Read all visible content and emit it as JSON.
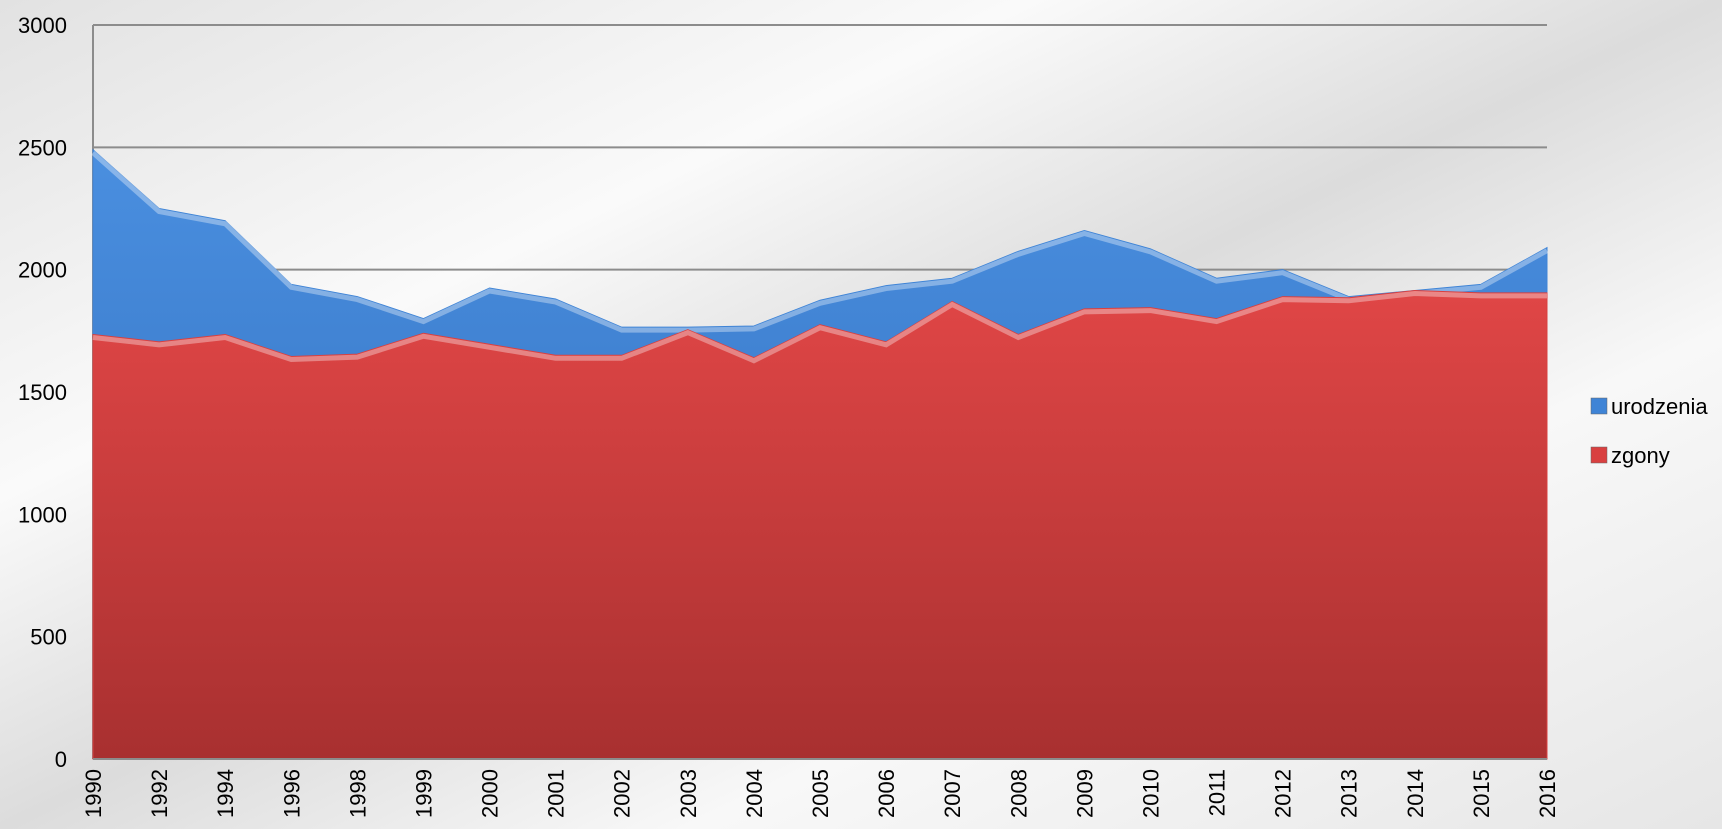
{
  "chart_data": {
    "type": "area",
    "categories": [
      "1990",
      "1992",
      "1994",
      "1996",
      "1998",
      "1999",
      "2000",
      "2001",
      "2002",
      "2003",
      "2004",
      "2005",
      "2006",
      "2007",
      "2008",
      "2009",
      "2010",
      "2011",
      "2012",
      "2013",
      "2014",
      "2015",
      "2016"
    ],
    "series": [
      {
        "name": "urodzenia",
        "color": "#3f84d6",
        "values": [
          2490,
          2250,
          2200,
          1940,
          1890,
          1800,
          1925,
          1880,
          1765,
          1765,
          1770,
          1875,
          1935,
          1965,
          2075,
          2160,
          2085,
          1965,
          2000,
          1890,
          1915,
          1940,
          2090
        ]
      },
      {
        "name": "zgony",
        "color": "#d94040",
        "values": [
          1735,
          1705,
          1735,
          1645,
          1655,
          1740,
          1695,
          1650,
          1650,
          1755,
          1640,
          1775,
          1705,
          1870,
          1735,
          1840,
          1845,
          1800,
          1890,
          1885,
          1915,
          1905,
          1905
        ]
      }
    ],
    "ylim": [
      0,
      3000
    ],
    "yticks": [
      0,
      500,
      1000,
      1500,
      2000,
      2500,
      3000
    ],
    "grid": true,
    "legend": "right"
  }
}
